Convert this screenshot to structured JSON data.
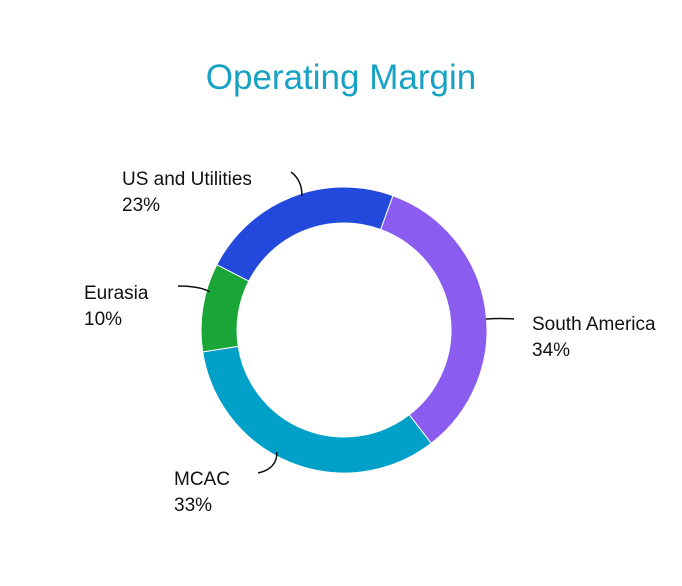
{
  "chart_data": {
    "type": "pie",
    "title": "Operating Margin",
    "donut": true,
    "slices": [
      {
        "label": "South America",
        "value": 34,
        "value_label": "34%",
        "color": "#8b5cf0"
      },
      {
        "label": "MCAC",
        "value": 33,
        "value_label": "33%",
        "color": "#00a0c8"
      },
      {
        "label": "Eurasia",
        "value": 10,
        "value_label": "10%",
        "color": "#1aa537"
      },
      {
        "label": "US and Utilities",
        "value": 23,
        "value_label": "23%",
        "color": "#2349dc"
      }
    ],
    "legend": "none"
  }
}
